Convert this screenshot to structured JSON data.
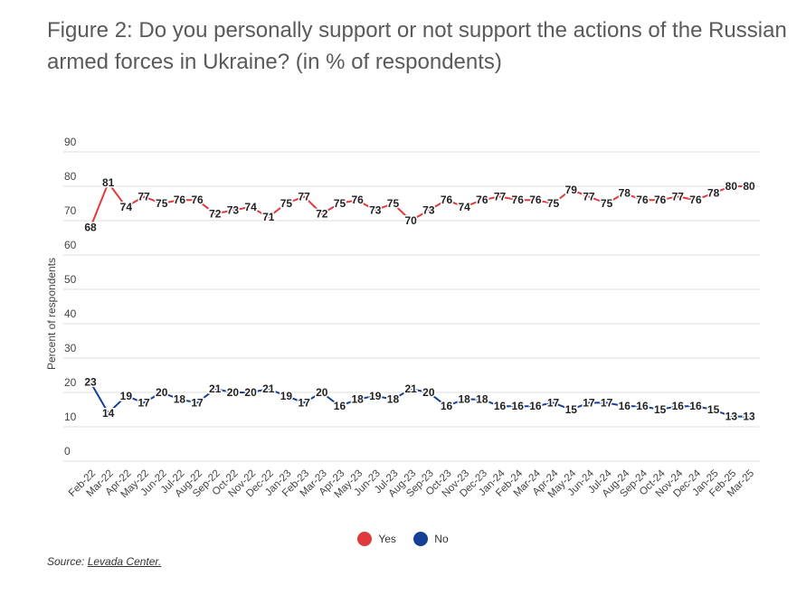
{
  "title": "Figure 2: Do you personally support or not support the actions of the Russian armed forces in Ukraine? (in % of respondents)",
  "source_label": "Source:",
  "source_link": "Levada Center.",
  "chart_data": {
    "type": "line",
    "title": "Figure 2: Do you personally support or not support the actions of the Russian armed forces in Ukraine? (in % of respondents)",
    "xlabel": "",
    "ylabel": "Percent of respondents",
    "ylim": [
      0,
      90
    ],
    "yticks": [
      0,
      10,
      20,
      30,
      40,
      50,
      60,
      70,
      80,
      90
    ],
    "grid": true,
    "legend_position": "bottom",
    "categories": [
      "Feb-22",
      "Mar-22",
      "Apr-22",
      "May-22",
      "Jun-22",
      "Jul-22",
      "Aug-22",
      "Sep-22",
      "Oct-22",
      "Nov-22",
      "Dec-22",
      "Jan-23",
      "Feb-23",
      "Mar-23",
      "Apr-23",
      "May-23",
      "Jun-23",
      "Jul-23",
      "Aug-23",
      "Sep-23",
      "Oct-23",
      "Nov-23",
      "Dec-23",
      "Jan-24",
      "Feb-24",
      "Mar-24",
      "Apr-24",
      "May-24",
      "Jun-24",
      "Jul-24",
      "Aug-24",
      "Sep-24",
      "Oct-24",
      "Nov-24",
      "Dec-24",
      "Jan-25",
      "Feb-25",
      "Mar-25"
    ],
    "series": [
      {
        "name": "Yes",
        "color": "#e03a3e",
        "values": [
          68,
          81,
          74,
          77,
          75,
          76,
          76,
          72,
          73,
          74,
          71,
          75,
          77,
          72,
          75,
          76,
          73,
          75,
          70,
          73,
          76,
          74,
          76,
          77,
          76,
          76,
          75,
          79,
          77,
          75,
          78,
          76,
          76,
          77,
          76,
          78,
          80,
          80
        ]
      },
      {
        "name": "No",
        "color": "#173f97",
        "values": [
          23,
          14,
          19,
          17,
          20,
          18,
          17,
          21,
          20,
          20,
          21,
          19,
          17,
          20,
          16,
          18,
          19,
          18,
          21,
          20,
          16,
          18,
          18,
          16,
          16,
          16,
          17,
          15,
          17,
          17,
          16,
          16,
          15,
          16,
          16,
          15,
          13,
          13
        ]
      }
    ]
  }
}
